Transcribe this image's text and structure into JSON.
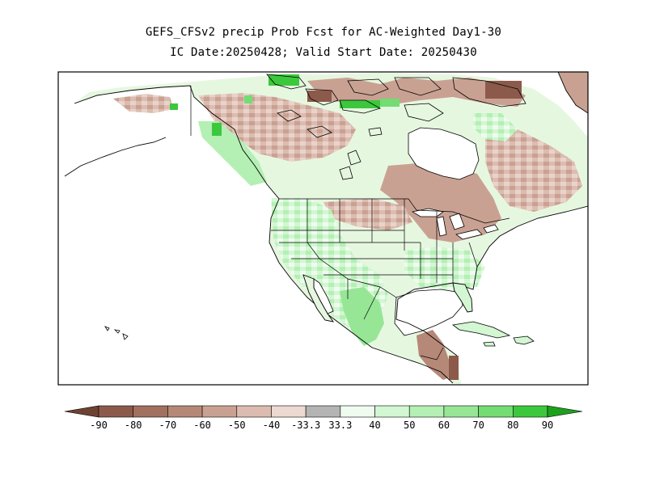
{
  "title_line1": "GEFS_CFSv2 precip Prob Fcst for AC-Weighted Day1-30",
  "title_line2": "IC Date:20250428; Valid Start Date: 20250430",
  "colorbar": {
    "labels": [
      "-90",
      "-80",
      "-70",
      "-60",
      "-50",
      "-40",
      "-33.3",
      "33.3",
      "40",
      "50",
      "60",
      "70",
      "80",
      "90"
    ],
    "colors": [
      "#6e4233",
      "#8c5a4b",
      "#a2705f",
      "#b68877",
      "#c9a192",
      "#dcbcb0",
      "#edd9d1",
      "#b4b4b4",
      "#effbef",
      "#d2f7d2",
      "#b4efb4",
      "#96e696",
      "#73dc73",
      "#3cc83c",
      "#1ea01e"
    ]
  },
  "legend_palette": {
    "below_dark": "#8c5a4b",
    "below_mid": "#b68877",
    "below_light": "#dcbcb0",
    "near_normal": "#ffffff",
    "above_light": "#d2f7d2",
    "above_mid": "#96e696",
    "above_dark": "#3cc83c",
    "outline": "#000000"
  }
}
